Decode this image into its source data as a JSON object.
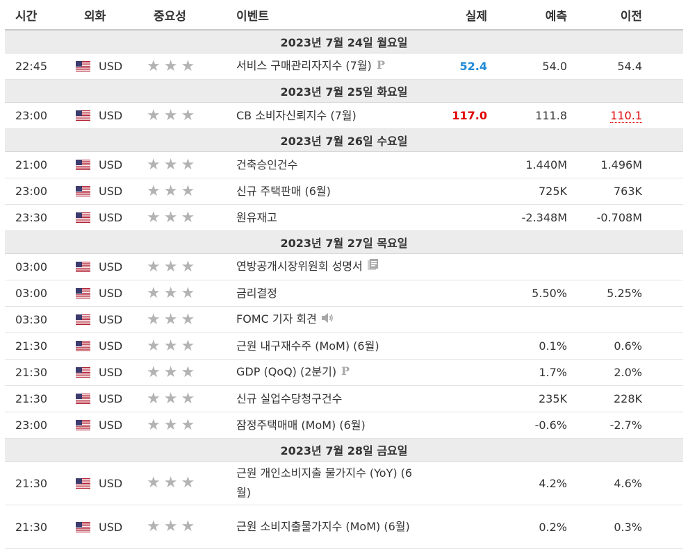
{
  "headers": {
    "time": "시간",
    "currency": "외화",
    "importance": "중요성",
    "event": "이벤트",
    "actual": "실제",
    "forecast": "예측",
    "previous": "이전"
  },
  "colors": {
    "actual_better": "#1f89d6",
    "actual_worse": "#e00000",
    "star_gray": "#b3b3b3",
    "date_row_bg": "#ececec"
  },
  "days": [
    {
      "date": "2023년 7월 24일 월요일",
      "events": [
        {
          "time": "22:45",
          "currency": "USD",
          "name": "서비스 구매관리자지수 (7월)",
          "icon": "preliminary-icon",
          "actual": "52.4",
          "actual_color": "blue",
          "forecast": "54.0",
          "previous": "54.4"
        }
      ]
    },
    {
      "date": "2023년 7월 25일 화요일",
      "events": [
        {
          "time": "23:00",
          "currency": "USD",
          "name": "CB 소비자신뢰지수 (7월)",
          "actual": "117.0",
          "actual_color": "red",
          "forecast": "111.8",
          "previous": "110.1",
          "previous_revised": true
        }
      ]
    },
    {
      "date": "2023년 7월 26일 수요일",
      "events": [
        {
          "time": "21:00",
          "currency": "USD",
          "name": "건축승인건수",
          "actual": "",
          "forecast": "1.440M",
          "previous": "1.496M"
        },
        {
          "time": "23:00",
          "currency": "USD",
          "name": "신규 주택판매 (6월)",
          "actual": "",
          "forecast": "725K",
          "previous": "763K"
        },
        {
          "time": "23:30",
          "currency": "USD",
          "name": "원유재고",
          "actual": "",
          "forecast": "-2.348M",
          "previous": "-0.708M"
        }
      ]
    },
    {
      "date": "2023년 7월 27일 목요일",
      "events": [
        {
          "time": "03:00",
          "currency": "USD",
          "name": "연방공개시장위원회 성명서",
          "icon": "document-icon",
          "actual": "",
          "forecast": "",
          "previous": ""
        },
        {
          "time": "03:00",
          "currency": "USD",
          "name": "금리결정",
          "actual": "",
          "forecast": "5.50%",
          "previous": "5.25%"
        },
        {
          "time": "03:30",
          "currency": "USD",
          "name": "FOMC 기자 회견",
          "icon": "speaker-icon",
          "actual": "",
          "forecast": "",
          "previous": ""
        },
        {
          "time": "21:30",
          "currency": "USD",
          "name": "근원 내구재수주 (MoM) (6월)",
          "actual": "",
          "forecast": "0.1%",
          "previous": "0.6%"
        },
        {
          "time": "21:30",
          "currency": "USD",
          "name": "GDP (QoQ) (2분기)",
          "icon": "preliminary-icon",
          "actual": "",
          "forecast": "1.7%",
          "previous": "2.0%"
        },
        {
          "time": "21:30",
          "currency": "USD",
          "name": "신규 실업수당청구건수",
          "actual": "",
          "forecast": "235K",
          "previous": "228K"
        },
        {
          "time": "23:00",
          "currency": "USD",
          "name": "잠정주택매매 (MoM) (6월)",
          "actual": "",
          "forecast": "-0.6%",
          "previous": "-2.7%"
        }
      ]
    },
    {
      "date": "2023년 7월 28일 금요일",
      "events": [
        {
          "time": "21:30",
          "currency": "USD",
          "name": "근원 개인소비지출 물가지수 (YoY) (6월)",
          "actual": "",
          "forecast": "4.2%",
          "previous": "4.6%",
          "tall": true
        },
        {
          "time": "21:30",
          "currency": "USD",
          "name": "근원 소비지출물가지수 (MoM) (6월)",
          "actual": "",
          "forecast": "0.2%",
          "previous": "0.3%",
          "tall": true
        }
      ]
    }
  ]
}
